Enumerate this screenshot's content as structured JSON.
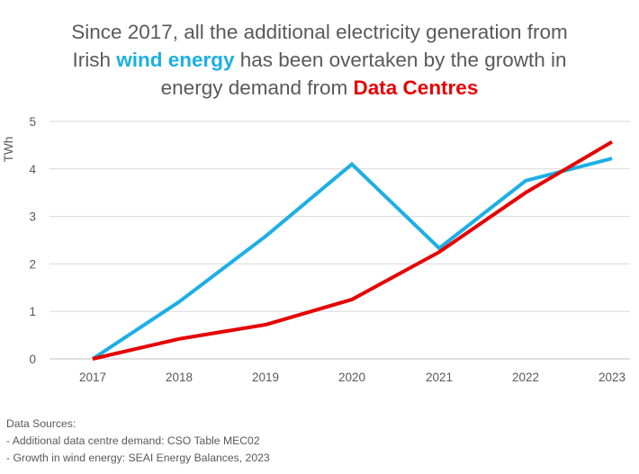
{
  "title": {
    "line1": "Since 2017, all the additional electricity generation from",
    "line2_prefix": "Irish ",
    "line2_highlight": "wind energy",
    "line2_suffix": " has been overtaken by the growth in",
    "line3_prefix": "energy demand from ",
    "line3_highlight": "Data Centres"
  },
  "chart_data": {
    "type": "line",
    "title": "Since 2017, all the additional electricity generation from Irish wind energy has been overtaken by the growth in energy demand from Data Centres",
    "xlabel": "",
    "ylabel": "TWh",
    "x": [
      "2017",
      "2018",
      "2019",
      "2020",
      "2021",
      "2022",
      "2023"
    ],
    "ylim": [
      0,
      5
    ],
    "yticks": [
      "0",
      "1",
      "2",
      "3",
      "4",
      "5"
    ],
    "grid": true,
    "legend": "none",
    "series": [
      {
        "name": "wind energy",
        "color": "#1CAFE5",
        "values": [
          0,
          1.2,
          2.58,
          4.1,
          2.33,
          3.75,
          4.22
        ]
      },
      {
        "name": "Data Centres",
        "color": "#E60000",
        "values": [
          0,
          0.42,
          0.72,
          1.25,
          2.25,
          3.5,
          4.57
        ]
      }
    ]
  },
  "sources": {
    "heading": "Data Sources:",
    "line1": "- Additional data centre demand: CSO Table MEC02",
    "line2": "- Growth in wind energy: SEAI Energy Balances, 2023"
  }
}
